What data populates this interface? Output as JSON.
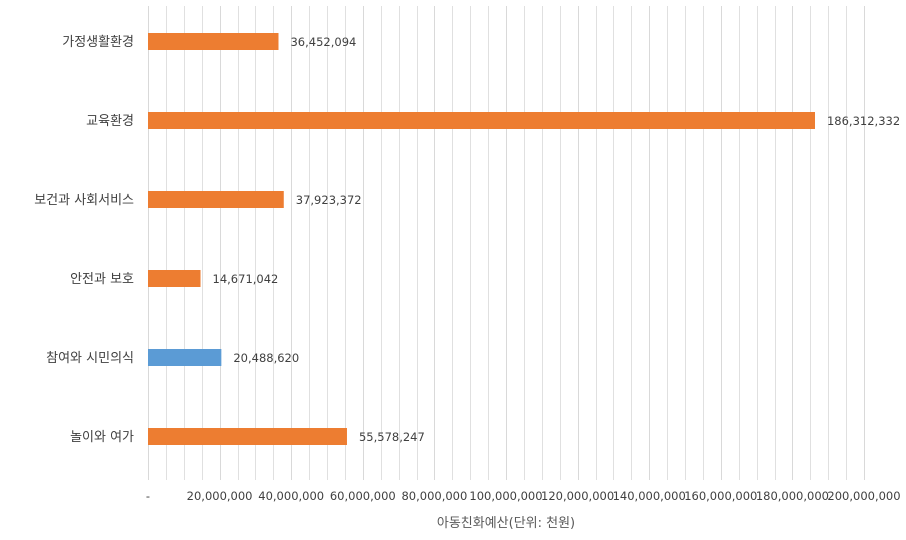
{
  "chart_data": {
    "type": "bar",
    "orientation": "horizontal",
    "title": "",
    "xlabel": "아동친화예산(단위: 천원)",
    "ylabel": "",
    "xlim": [
      0,
      200000000
    ],
    "grid": true,
    "categories": [
      "가정생활환경",
      "교육환경",
      "보건과 사회서비스",
      "안전과 보호",
      "참여와 시민의식",
      "놀이와 여가"
    ],
    "values": [
      36452094,
      186312332,
      37923372,
      14671042,
      20488620,
      55578247
    ],
    "value_labels": [
      "36,452,094",
      "186,312,332",
      "37,923,372",
      "14,671,042",
      "20,488,620",
      "55,578,247"
    ],
    "bar_colors": [
      "#ED7D31",
      "#ED7D31",
      "#ED7D31",
      "#ED7D31",
      "#5B9BD5",
      "#ED7D31"
    ],
    "x_tick_labels": [
      "-",
      "20,000,000",
      "40,000,000",
      "60,000,000",
      "80,000,000",
      "100,000,000",
      "120,000,000",
      "140,000,000",
      "160,000,000",
      "180,000,000",
      "200,000,000"
    ],
    "x_ticks": [
      0,
      20000000,
      40000000,
      60000000,
      80000000,
      100000000,
      120000000,
      140000000,
      160000000,
      180000000,
      200000000
    ],
    "gridline_color": "#D9D9D9"
  }
}
